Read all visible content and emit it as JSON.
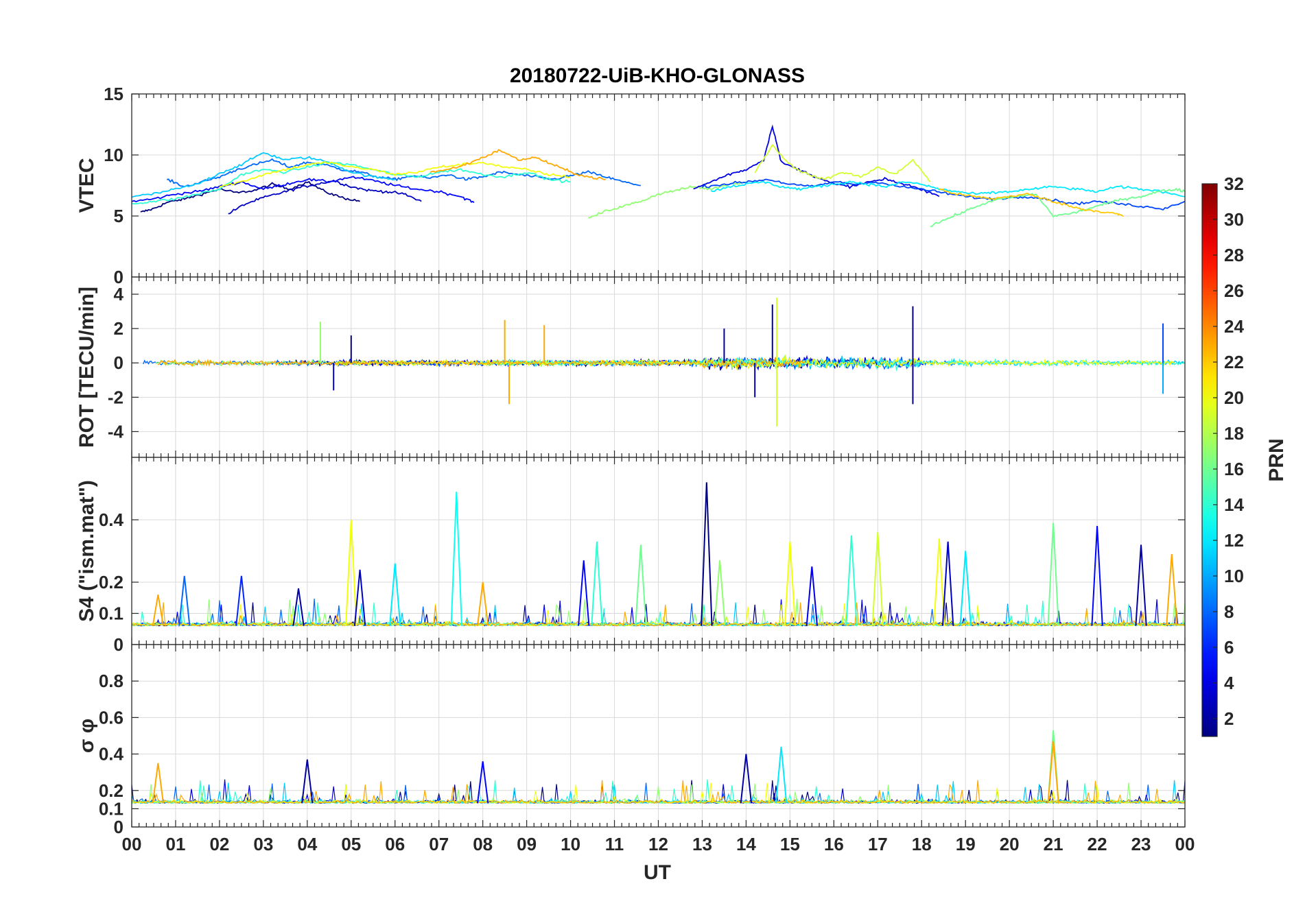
{
  "title": "20180722-UiB-KHO-GLONASS",
  "chart_data": [
    {
      "type": "line",
      "panel": "VTEC",
      "ylabel": "VTEC",
      "ylim": [
        0,
        15
      ],
      "yticks": [
        0,
        5,
        10,
        15
      ],
      "xlim": [
        0,
        24
      ],
      "series_note": "many PRN traces",
      "traces": [
        {
          "prn": 1,
          "x": [
            0.2,
            0.5,
            0.8,
            1.2,
            1.6,
            2.0,
            2.4,
            2.8,
            3.2,
            3.6,
            4.0,
            4.4,
            4.8,
            5.2
          ],
          "y": [
            5.3,
            5.6,
            6.1,
            6.4,
            6.8,
            7.2,
            6.9,
            7.1,
            7.6,
            7.2,
            7.8,
            7.0,
            6.5,
            6.2
          ]
        },
        {
          "prn": 3,
          "x": [
            2.2,
            2.6,
            3.0,
            3.4,
            3.8,
            4.2,
            4.6,
            5.0,
            5.4,
            5.8,
            6.2,
            6.6
          ],
          "y": [
            5.2,
            6.0,
            6.5,
            6.9,
            7.3,
            7.6,
            7.9,
            7.4,
            7.1,
            7.0,
            6.8,
            6.2
          ]
        },
        {
          "prn": 5,
          "x": [
            0.0,
            0.5,
            1.0,
            1.5,
            2.0,
            2.5,
            3.0,
            3.5,
            4.0,
            4.5,
            5.0,
            5.5,
            6.0,
            6.5,
            7.0,
            7.5,
            7.8
          ],
          "y": [
            6.2,
            6.4,
            6.8,
            7.0,
            7.4,
            7.8,
            7.2,
            7.6,
            8.0,
            7.8,
            8.2,
            7.9,
            7.5,
            7.2,
            7.0,
            6.6,
            6.1
          ]
        },
        {
          "prn": 8,
          "x": [
            0.8,
            1.2,
            1.6,
            2.0,
            2.4,
            2.8,
            3.2,
            3.6,
            4.0,
            4.4,
            4.8,
            5.2,
            5.6,
            6.0,
            6.4,
            6.8,
            7.2,
            7.6,
            8.0,
            8.4,
            8.8,
            9.2,
            9.6,
            10.0,
            10.4,
            10.8,
            11.2,
            11.6
          ],
          "y": [
            8.0,
            7.4,
            7.8,
            8.2,
            8.8,
            9.2,
            9.6,
            9.0,
            9.4,
            9.2,
            8.8,
            8.6,
            8.2,
            8.0,
            8.3,
            8.1,
            8.4,
            8.0,
            8.2,
            8.6,
            8.4,
            8.2,
            8.0,
            8.3,
            8.6,
            8.2,
            7.8,
            7.5
          ]
        },
        {
          "prn": 11,
          "x": [
            0.0,
            0.5,
            1.0,
            1.5,
            2.0,
            2.5,
            3.0,
            3.5,
            4.0,
            4.5,
            5.0,
            5.5,
            6.0
          ],
          "y": [
            6.6,
            6.8,
            7.2,
            7.6,
            8.5,
            9.2,
            10.2,
            9.6,
            9.8,
            9.4,
            8.6,
            8.2,
            8.0
          ]
        },
        {
          "prn": 14,
          "x": [
            0.0,
            0.5,
            1.0,
            1.5,
            2.0,
            2.5,
            3.0,
            3.5,
            4.0,
            4.5,
            5.0,
            5.5,
            6.0,
            6.5,
            7.0,
            7.5,
            8.0,
            8.5,
            9.0,
            9.5,
            10.0
          ],
          "y": [
            6.0,
            6.2,
            6.4,
            6.8,
            7.2,
            8.4,
            8.8,
            8.6,
            9.0,
            9.4,
            9.2,
            8.8,
            8.4,
            8.2,
            8.6,
            8.8,
            8.4,
            8.2,
            8.6,
            8.0,
            7.8
          ]
        },
        {
          "prn": 17,
          "x": [
            10.4,
            10.8,
            11.2,
            11.6,
            12.0,
            12.4,
            12.8,
            13.2,
            13.6,
            14.0
          ],
          "y": [
            4.8,
            5.4,
            5.8,
            6.2,
            6.8,
            7.1,
            7.4,
            7.2,
            7.6,
            7.8
          ]
        },
        {
          "prn": 20,
          "x": [
            2.0,
            2.5,
            3.0,
            3.5,
            4.0,
            4.5,
            5.0,
            5.5,
            6.0,
            6.5,
            7.0,
            7.5,
            8.0,
            8.5,
            9.0,
            9.5,
            10.0
          ],
          "y": [
            7.4,
            7.8,
            8.4,
            8.8,
            9.2,
            9.4,
            9.0,
            8.8,
            8.4,
            8.6,
            9.0,
            9.2,
            9.4,
            9.0,
            8.8,
            8.4,
            8.2
          ]
        },
        {
          "prn": 23,
          "x": [
            6.8,
            7.2,
            7.6,
            8.0,
            8.4,
            8.8,
            9.2,
            9.6,
            10.0,
            10.4,
            10.8
          ],
          "y": [
            8.6,
            8.8,
            9.2,
            9.8,
            10.4,
            9.6,
            9.8,
            9.2,
            8.6,
            8.2,
            8.0
          ]
        },
        {
          "prn": 4,
          "x": [
            12.8,
            13.2,
            13.6,
            14.0,
            14.4,
            14.6,
            14.8,
            15.2,
            15.6,
            16.0,
            16.4,
            16.8,
            17.2,
            17.6,
            18.0,
            18.4
          ],
          "y": [
            7.2,
            7.8,
            8.4,
            8.8,
            9.6,
            12.4,
            9.4,
            8.8,
            8.2,
            7.6,
            7.4,
            7.8,
            8.0,
            7.6,
            7.2,
            6.6
          ]
        },
        {
          "prn": 7,
          "x": [
            13.0,
            13.5,
            14.0,
            14.5,
            15.0,
            15.5,
            16.0,
            16.5,
            17.0,
            17.5,
            18.0,
            18.5,
            19.0,
            19.5,
            20.0,
            20.5,
            21.0,
            21.5,
            22.0,
            22.5,
            23.0,
            23.5,
            24.0
          ],
          "y": [
            7.4,
            7.6,
            7.8,
            8.0,
            7.6,
            7.4,
            7.8,
            7.6,
            7.8,
            7.4,
            7.2,
            6.9,
            6.6,
            6.4,
            6.5,
            6.6,
            6.3,
            6.0,
            6.2,
            6.0,
            5.8,
            5.6,
            6.2
          ]
        },
        {
          "prn": 12,
          "x": [
            13.2,
            13.6,
            14.0,
            14.4,
            14.8,
            15.2,
            15.6,
            16.0,
            16.4,
            16.8,
            17.2,
            17.6,
            18.0,
            18.4,
            18.8,
            19.2,
            19.6,
            20.0,
            20.5,
            21.0,
            21.5,
            22.0,
            22.5,
            23.0,
            23.5,
            24.0
          ],
          "y": [
            7.0,
            7.4,
            7.6,
            7.8,
            7.4,
            7.2,
            7.4,
            7.6,
            7.8,
            7.6,
            7.4,
            7.8,
            7.6,
            7.2,
            7.0,
            6.8,
            6.9,
            7.0,
            7.2,
            7.4,
            7.2,
            7.0,
            7.4,
            7.2,
            7.0,
            6.6
          ]
        },
        {
          "prn": 16,
          "x": [
            18.2,
            18.6,
            19.0,
            19.4,
            19.8,
            20.2,
            20.6,
            21.0,
            21.4,
            21.8,
            22.2,
            22.6,
            23.0,
            23.4,
            23.8,
            24.0
          ],
          "y": [
            4.2,
            4.8,
            5.4,
            6.0,
            6.4,
            6.6,
            6.8,
            5.0,
            5.2,
            5.6,
            6.0,
            6.4,
            6.6,
            7.0,
            7.2,
            7.0
          ]
        },
        {
          "prn": 19,
          "x": [
            14.2,
            14.6,
            15.0,
            15.4,
            15.8,
            16.2,
            16.6,
            17.0,
            17.4,
            17.8,
            18.2
          ],
          "y": [
            8.6,
            10.8,
            9.2,
            8.4,
            8.0,
            8.6,
            8.2,
            9.0,
            8.4,
            9.6,
            7.8
          ]
        },
        {
          "prn": 22,
          "x": [
            18.4,
            18.8,
            19.2,
            19.6,
            20.0,
            20.4,
            20.8,
            21.2,
            21.6,
            22.0,
            22.4,
            22.6
          ],
          "y": [
            7.2,
            6.8,
            6.6,
            6.4,
            6.6,
            6.8,
            6.4,
            6.0,
            5.6,
            5.4,
            5.2,
            5.0
          ]
        }
      ]
    },
    {
      "type": "line",
      "panel": "ROT",
      "ylabel": "ROT [TECU/min]",
      "ylim": [
        -5.5,
        5
      ],
      "yticks": [
        -4,
        -2,
        0,
        2,
        4
      ],
      "xlim": [
        0,
        24
      ],
      "series_note": "rate of TEC, spiky around 0",
      "spikes": [
        {
          "x": 4.3,
          "y": 2.4,
          "prn": 17
        },
        {
          "x": 4.6,
          "y": -1.6,
          "prn": 3
        },
        {
          "x": 5.0,
          "y": 1.6,
          "prn": 1
        },
        {
          "x": 8.5,
          "y": 2.5,
          "prn": 23
        },
        {
          "x": 8.6,
          "y": -2.4,
          "prn": 23
        },
        {
          "x": 9.4,
          "y": 2.2,
          "prn": 23
        },
        {
          "x": 13.5,
          "y": 2.0,
          "prn": 2
        },
        {
          "x": 14.2,
          "y": -2.0,
          "prn": 2
        },
        {
          "x": 14.7,
          "y": 3.8,
          "prn": 19
        },
        {
          "x": 14.7,
          "y": -3.7,
          "prn": 19
        },
        {
          "x": 14.6,
          "y": 3.4,
          "prn": 2
        },
        {
          "x": 17.8,
          "y": 3.3,
          "prn": 1
        },
        {
          "x": 17.8,
          "y": -2.4,
          "prn": 1
        },
        {
          "x": 23.5,
          "y": 2.3,
          "prn": 7
        },
        {
          "x": 23.5,
          "y": -1.8,
          "prn": 10
        }
      ]
    },
    {
      "type": "line",
      "panel": "S4",
      "ylabel": "S4 (\"ism.mat\")",
      "ylim": [
        0,
        0.6
      ],
      "yticks": [
        0,
        0.1,
        0.2,
        0.4
      ],
      "xlim": [
        0,
        24
      ],
      "series_note": "amplitude scintillation index",
      "peaks": [
        {
          "x": 0.6,
          "y": 0.16,
          "prn": 23
        },
        {
          "x": 1.2,
          "y": 0.22,
          "prn": 8
        },
        {
          "x": 2.5,
          "y": 0.22,
          "prn": 6
        },
        {
          "x": 3.8,
          "y": 0.18,
          "prn": 2
        },
        {
          "x": 5.0,
          "y": 0.4,
          "prn": 20
        },
        {
          "x": 5.2,
          "y": 0.24,
          "prn": 3
        },
        {
          "x": 6.0,
          "y": 0.26,
          "prn": 12
        },
        {
          "x": 7.4,
          "y": 0.49,
          "prn": 13
        },
        {
          "x": 8.0,
          "y": 0.2,
          "prn": 23
        },
        {
          "x": 10.3,
          "y": 0.27,
          "prn": 5
        },
        {
          "x": 10.6,
          "y": 0.33,
          "prn": 14
        },
        {
          "x": 11.6,
          "y": 0.32,
          "prn": 16
        },
        {
          "x": 13.1,
          "y": 0.52,
          "prn": 1
        },
        {
          "x": 13.4,
          "y": 0.27,
          "prn": 17
        },
        {
          "x": 15.0,
          "y": 0.33,
          "prn": 20
        },
        {
          "x": 15.5,
          "y": 0.25,
          "prn": 4
        },
        {
          "x": 16.4,
          "y": 0.35,
          "prn": 14
        },
        {
          "x": 17.0,
          "y": 0.36,
          "prn": 19
        },
        {
          "x": 18.4,
          "y": 0.34,
          "prn": 20
        },
        {
          "x": 18.6,
          "y": 0.33,
          "prn": 3
        },
        {
          "x": 19.0,
          "y": 0.3,
          "prn": 12
        },
        {
          "x": 21.0,
          "y": 0.39,
          "prn": 16
        },
        {
          "x": 22.0,
          "y": 0.38,
          "prn": 5
        },
        {
          "x": 23.0,
          "y": 0.32,
          "prn": 2
        },
        {
          "x": 23.7,
          "y": 0.29,
          "prn": 23
        }
      ]
    },
    {
      "type": "line",
      "panel": "sigma_phi",
      "ylabel": "σ φ",
      "ylim": [
        0,
        1
      ],
      "yticks": [
        0,
        0.1,
        0.2,
        0.4,
        0.6,
        0.8
      ],
      "xlim": [
        0,
        24
      ],
      "series_note": "phase scintillation index",
      "peaks": [
        {
          "x": 0.6,
          "y": 0.35,
          "prn": 23
        },
        {
          "x": 4.0,
          "y": 0.37,
          "prn": 2
        },
        {
          "x": 8.0,
          "y": 0.36,
          "prn": 5
        },
        {
          "x": 14.0,
          "y": 0.4,
          "prn": 2
        },
        {
          "x": 14.8,
          "y": 0.44,
          "prn": 12
        },
        {
          "x": 21.0,
          "y": 0.53,
          "prn": 16
        },
        {
          "x": 21.0,
          "y": 0.47,
          "prn": 23
        }
      ]
    }
  ],
  "x_axis": {
    "xlabel": "UT",
    "tick_labels": [
      "00",
      "01",
      "02",
      "03",
      "04",
      "05",
      "06",
      "07",
      "08",
      "09",
      "10",
      "11",
      "12",
      "13",
      "14",
      "15",
      "16",
      "17",
      "18",
      "19",
      "20",
      "21",
      "22",
      "23",
      "00"
    ]
  },
  "colorbar": {
    "label": "PRN",
    "range": [
      1,
      32
    ],
    "tick_labels": [
      "2",
      "4",
      "6",
      "8",
      "10",
      "12",
      "14",
      "16",
      "18",
      "20",
      "22",
      "24",
      "26",
      "28",
      "30",
      "32"
    ],
    "colormap": "jet"
  }
}
